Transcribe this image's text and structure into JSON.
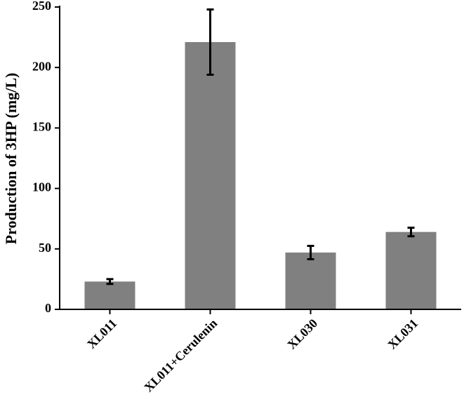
{
  "chart_data": {
    "type": "bar",
    "y_label": "Production of 3HP (mg/L)",
    "categories": [
      "XL011",
      "XL011+Cerulenin",
      "XL030",
      "XL031"
    ],
    "values": [
      23,
      221,
      47,
      64
    ],
    "errors": [
      2,
      27,
      5.5,
      3.5
    ],
    "color": "#808080",
    "ylim": [
      0,
      250
    ],
    "yticks": [
      0,
      50,
      100,
      150,
      200,
      250
    ]
  }
}
